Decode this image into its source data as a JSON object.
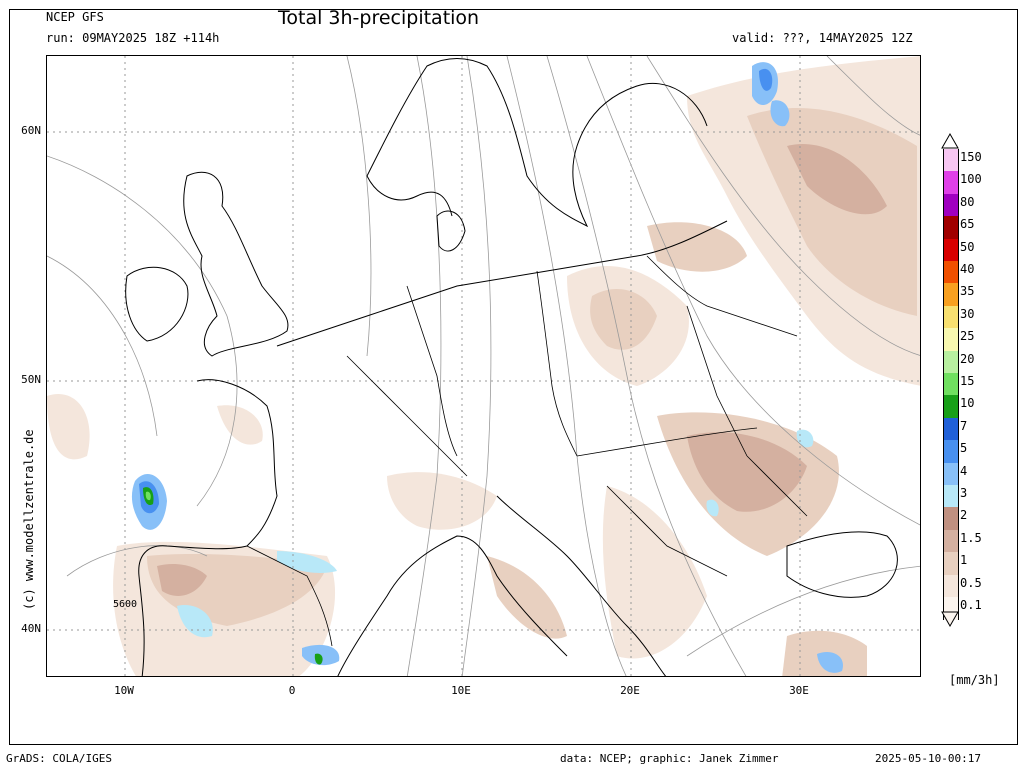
{
  "header": {
    "model": "NCEP GFS",
    "run": "run: 09MAY2025 18Z +114h",
    "title": "Total 3h-precipitation",
    "valid": "valid: ???, 14MAY2025 12Z"
  },
  "axes": {
    "lat_labels": [
      "60N",
      "50N",
      "40N"
    ],
    "lon_labels": [
      "10W",
      "0",
      "10E",
      "20E",
      "30E"
    ]
  },
  "contour_label": "5600",
  "copyright": "(c) www.modellzentrale.de",
  "legend": {
    "unit": "[mm/3h]",
    "items": [
      {
        "label": "150",
        "color": "#f7c6f2"
      },
      {
        "label": "100",
        "color": "#e040e8"
      },
      {
        "label": "80",
        "color": "#a000c0"
      },
      {
        "label": "65",
        "color": "#a00000"
      },
      {
        "label": "50",
        "color": "#d80000"
      },
      {
        "label": "40",
        "color": "#f05000"
      },
      {
        "label": "35",
        "color": "#f8a020"
      },
      {
        "label": "30",
        "color": "#f8e070"
      },
      {
        "label": "25",
        "color": "#f8f8b0"
      },
      {
        "label": "20",
        "color": "#b8f0a0"
      },
      {
        "label": "15",
        "color": "#70e060"
      },
      {
        "label": "10",
        "color": "#18a018"
      },
      {
        "label": "7",
        "color": "#2060d8"
      },
      {
        "label": "5",
        "color": "#4890f0"
      },
      {
        "label": "4",
        "color": "#88c0f8"
      },
      {
        "label": "3",
        "color": "#b8e8f8"
      },
      {
        "label": "2",
        "color": "#c09080"
      },
      {
        "label": "1.5",
        "color": "#d4b0a0"
      },
      {
        "label": "1",
        "color": "#e8d0c0"
      },
      {
        "label": "0.5",
        "color": "#f4e6dc"
      },
      {
        "label": "0.1",
        "color": "#fbf4ee"
      }
    ]
  },
  "footer": {
    "left": "GrADS: COLA/IGES",
    "center": "data: NCEP; graphic: Janek Zimmer",
    "right": "2025-05-10-00:17"
  }
}
